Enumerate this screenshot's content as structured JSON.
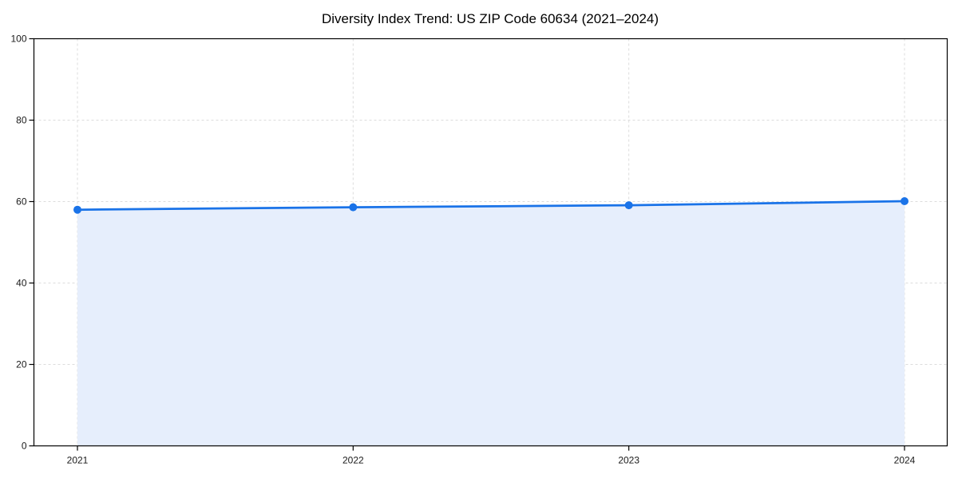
{
  "chart_data": {
    "type": "area",
    "title": "Diversity Index Trend: US ZIP Code 60634 (2021–2024)",
    "x": [
      2021,
      2022,
      2023,
      2024
    ],
    "x_tick_labels": [
      "2021",
      "2022",
      "2023",
      "2024"
    ],
    "series": [
      {
        "name": "Diversity Index",
        "values": [
          58.0,
          58.6,
          59.1,
          60.1
        ]
      }
    ],
    "xlabel": "",
    "ylabel": "",
    "ylim": [
      0,
      100
    ],
    "y_ticks": [
      0,
      20,
      40,
      60,
      80,
      100
    ],
    "y_tick_labels": [
      "0",
      "20",
      "40",
      "60",
      "80",
      "100"
    ],
    "grid": "dashed",
    "legend": false,
    "colors": {
      "line": "#1a73e8",
      "marker": "#1a73e8",
      "area_fill": "#e6eefc",
      "grid": "#dcdcdc",
      "spine": "#000000",
      "tick_label": "#1a1a1a",
      "title": "#000000"
    }
  }
}
